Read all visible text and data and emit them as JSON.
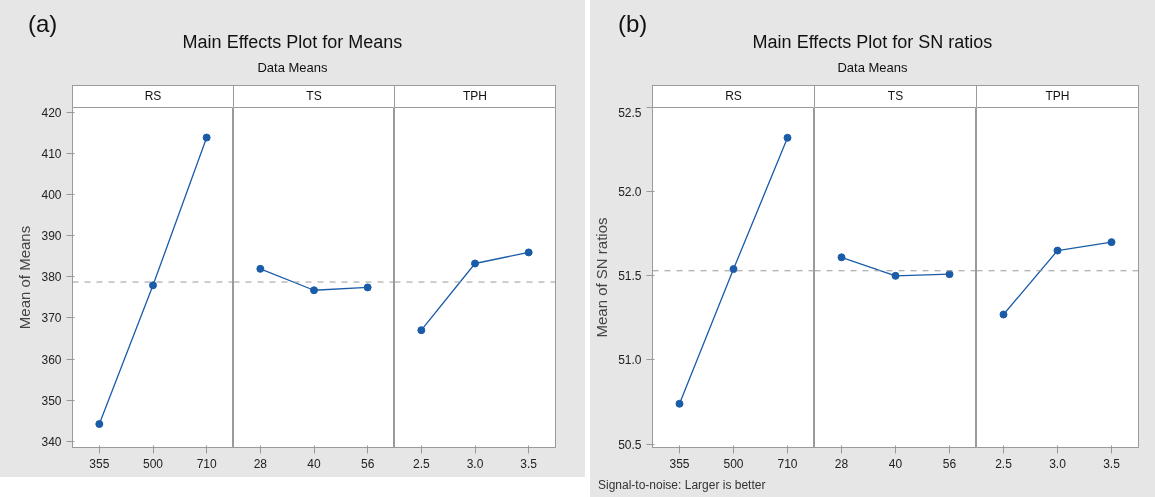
{
  "chart_data": [
    {
      "type": "line",
      "title": "RS",
      "ylabel": "Mean of Means",
      "annotations": [
        "(a)",
        "Main Effects Plot for Means",
        "Data Means"
      ],
      "categories": [
        "355",
        "500",
        "710"
      ],
      "values": [
        344.2,
        377.9,
        413.8
      ],
      "color": "#1a5ca8",
      "marker": "circle",
      "line_style": "solid",
      "ylim": [
        338.5,
        421.1
      ],
      "yticks": [
        340,
        350,
        360,
        370,
        380,
        390,
        400,
        410,
        420
      ],
      "ref_lines": [
        {
          "axis": "y",
          "value": 378.7,
          "color": "#999999",
          "line_style": "dashed"
        }
      ]
    },
    {
      "type": "line",
      "title": "TS",
      "categories": [
        "28",
        "40",
        "56"
      ],
      "values": [
        381.9,
        376.7,
        377.4
      ],
      "color": "#1a5ca8",
      "marker": "circle",
      "line_style": "solid",
      "ylim": [
        338.5,
        421.1
      ],
      "tick_labels": "x",
      "ref_lines": [
        {
          "axis": "y",
          "value": 378.7,
          "color": "#999999",
          "line_style": "dashed"
        }
      ]
    },
    {
      "type": "line",
      "title": "TPH",
      "categories": [
        "2.5",
        "3.0",
        "3.5"
      ],
      "values": [
        367.0,
        383.2,
        385.9
      ],
      "color": "#1a5ca8",
      "marker": "circle",
      "line_style": "solid",
      "ylim": [
        338.5,
        421.1
      ],
      "tick_labels": "x",
      "ref_lines": [
        {
          "axis": "y",
          "value": 378.7,
          "color": "#999999",
          "line_style": "dashed"
        }
      ]
    },
    {
      "type": "line",
      "title": "RS",
      "ylabel": "Mean of SN ratios",
      "annotations": [
        "(b)",
        "Main Effects Plot for SN ratios",
        "Data Means",
        "Signal-to-noise: Larger is better"
      ],
      "categories": [
        "355",
        "500",
        "710"
      ],
      "values": [
        50.74,
        51.54,
        52.32
      ],
      "color": "#1a5ca8",
      "marker": "circle",
      "line_style": "solid",
      "ylim": [
        50.48,
        52.5
      ],
      "yticks": [
        {
          "value": 50.5,
          "label": "50.5"
        },
        {
          "value": 51,
          "label": "51.0"
        },
        {
          "value": 51.5,
          "label": "51.5"
        },
        {
          "value": 52,
          "label": "52.0"
        },
        {
          "value": 52.5,
          "label": "52.5"
        }
      ],
      "ref_lines": [
        {
          "axis": "y",
          "value": 51.53,
          "color": "#999999",
          "line_style": "dashed"
        }
      ]
    },
    {
      "type": "line",
      "title": "TS",
      "categories": [
        "28",
        "40",
        "56"
      ],
      "values": [
        51.61,
        51.5,
        51.51
      ],
      "color": "#1a5ca8",
      "marker": "circle",
      "line_style": "solid",
      "ylim": [
        50.48,
        52.5
      ],
      "tick_labels": "x",
      "ref_lines": [
        {
          "axis": "y",
          "value": 51.53,
          "color": "#999999",
          "line_style": "dashed"
        }
      ]
    },
    {
      "type": "line",
      "title": "TPH",
      "categories": [
        "2.5",
        "3.0",
        "3.5"
      ],
      "values": [
        51.27,
        51.65,
        51.7
      ],
      "color": "#1a5ca8",
      "marker": "circle",
      "line_style": "solid",
      "ylim": [
        50.48,
        52.5
      ],
      "tick_labels": "x",
      "ref_lines": [
        {
          "axis": "y",
          "value": 51.53,
          "color": "#999999",
          "line_style": "dashed"
        }
      ]
    }
  ]
}
